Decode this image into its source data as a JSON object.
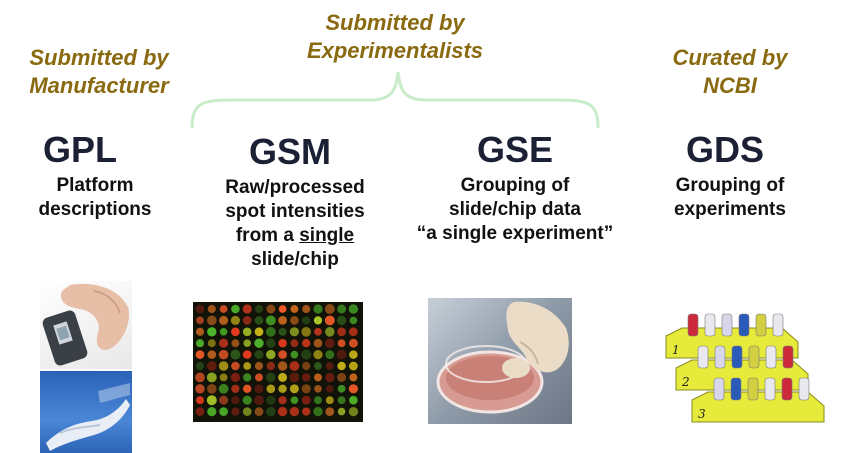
{
  "colors": {
    "submitter_text": "#8a6a10",
    "code_text": "#1c2035",
    "brace": "#c8ecc8"
  },
  "submitters": {
    "manufacturer": [
      "Submitted by",
      "Manufacturer"
    ],
    "experimentalists": [
      "Submitted by",
      "Experimentalists"
    ],
    "ncbi": [
      "Curated by",
      "NCBI"
    ]
  },
  "entries": [
    {
      "code": "GPL",
      "lines": [
        "Platform",
        "descriptions"
      ]
    },
    {
      "code": "GSM",
      "lines": [
        "Raw/processed",
        "spot intensities",
        "from a ",
        "single",
        "slide/chip"
      ]
    },
    {
      "code": "GSE",
      "lines": [
        "Grouping of",
        "slide/chip data",
        "“a single experiment”"
      ]
    },
    {
      "code": "GDS",
      "lines": [
        "Grouping of",
        "experiments"
      ]
    }
  ],
  "images": {
    "gpl_top": "hand-holding-chip-icon",
    "gpl_bottom": "gloved-hand-slide-icon",
    "gsm": "microarray-spots-image",
    "gse": "petri-dish-hand-image",
    "gds": "tube-racks-image",
    "rack_labels": [
      "1",
      "2",
      "3"
    ]
  }
}
